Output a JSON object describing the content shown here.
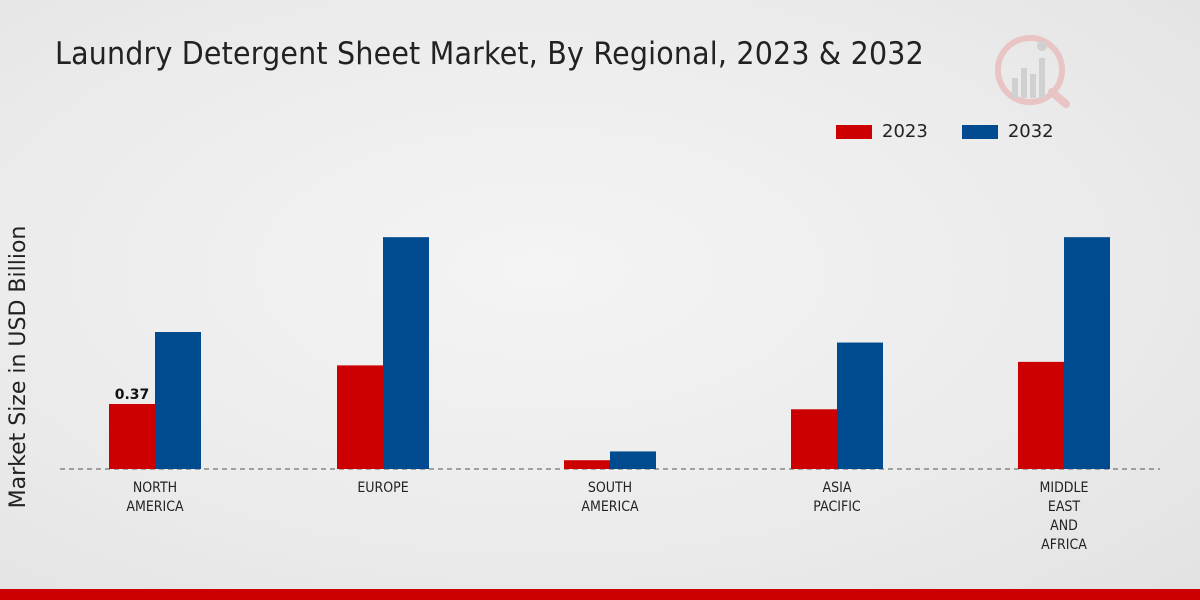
{
  "chart_data": {
    "type": "bar",
    "title": "Laundry Detergent Sheet Market, By Regional, 2023 & 2032",
    "xlabel": "",
    "ylabel": "Market Size in USD Billion",
    "categories": [
      [
        "NORTH",
        "AMERICA"
      ],
      [
        "EUROPE"
      ],
      [
        "SOUTH",
        "AMERICA"
      ],
      [
        "ASIA",
        "PACIFIC"
      ],
      [
        "MIDDLE",
        "EAST",
        "AND",
        "AFRICA"
      ]
    ],
    "series": [
      {
        "name": "2023",
        "color": "#cc0000",
        "values": [
          0.37,
          0.59,
          0.05,
          0.34,
          0.61
        ]
      },
      {
        "name": "2032",
        "color": "#004a8f",
        "values": [
          0.78,
          1.32,
          0.1,
          0.72,
          1.32
        ]
      }
    ],
    "ylim": [
      0,
      1.6
    ],
    "data_labels": [
      {
        "series": 0,
        "index": 0,
        "text": "0.37"
      }
    ],
    "legend_position": "top-right",
    "grid": false
  }
}
